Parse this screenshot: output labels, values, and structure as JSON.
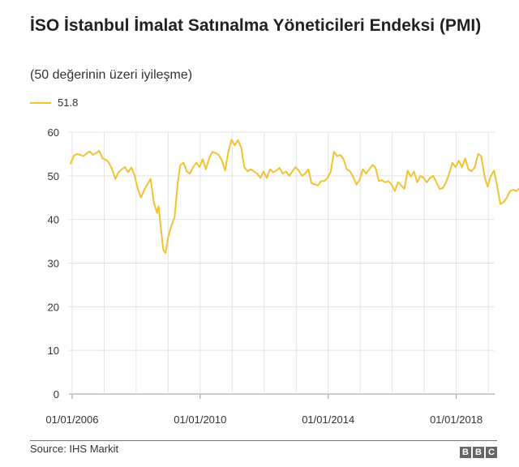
{
  "chart_data": {
    "type": "line",
    "title": "İSO İstanbul İmalat Satınalma Yöneticileri Endeksi (PMI)",
    "subtitle": "(50 değerinin üzeri iyileşme)",
    "legend_label": "51.8",
    "series_color": "#f2c230",
    "ylim": [
      0,
      60
    ],
    "yticks": [
      0,
      10,
      20,
      30,
      40,
      50,
      60
    ],
    "xticks": [
      {
        "x": 2006.0,
        "label": "01/01/2006"
      },
      {
        "x": 2010.0,
        "label": "01/01/2010"
      },
      {
        "x": 2014.0,
        "label": "01/01/2014"
      },
      {
        "x": 2018.0,
        "label": "01/01/2018"
      }
    ],
    "xlim": [
      2005.9,
      2019.2
    ],
    "grid": true,
    "series": [
      {
        "values": [
          [
            2005.95,
            52.8
          ],
          [
            2006.05,
            54.6
          ],
          [
            2006.15,
            55.0
          ],
          [
            2006.25,
            54.8
          ],
          [
            2006.35,
            54.5
          ],
          [
            2006.45,
            55.1
          ],
          [
            2006.55,
            55.6
          ],
          [
            2006.65,
            54.8
          ],
          [
            2006.75,
            55.2
          ],
          [
            2006.85,
            55.7
          ],
          [
            2006.95,
            54.0
          ],
          [
            2007.05,
            53.7
          ],
          [
            2007.15,
            53.0
          ],
          [
            2007.25,
            51.5
          ],
          [
            2007.35,
            49.3
          ],
          [
            2007.45,
            50.8
          ],
          [
            2007.55,
            51.5
          ],
          [
            2007.65,
            52.0
          ],
          [
            2007.75,
            50.8
          ],
          [
            2007.85,
            51.9
          ],
          [
            2007.95,
            50.2
          ],
          [
            2008.05,
            47.0
          ],
          [
            2008.15,
            45.0
          ],
          [
            2008.25,
            46.8
          ],
          [
            2008.35,
            48.0
          ],
          [
            2008.45,
            49.3
          ],
          [
            2008.55,
            44.0
          ],
          [
            2008.65,
            41.5
          ],
          [
            2008.7,
            43.0
          ],
          [
            2008.78,
            37.5
          ],
          [
            2008.85,
            33.0
          ],
          [
            2008.92,
            32.3
          ],
          [
            2009.0,
            36.0
          ],
          [
            2009.1,
            38.5
          ],
          [
            2009.2,
            40.5
          ],
          [
            2009.3,
            48.5
          ],
          [
            2009.38,
            52.5
          ],
          [
            2009.48,
            53.0
          ],
          [
            2009.58,
            51.0
          ],
          [
            2009.68,
            50.5
          ],
          [
            2009.78,
            52.0
          ],
          [
            2009.88,
            53.0
          ],
          [
            2009.98,
            52.0
          ],
          [
            2010.08,
            53.8
          ],
          [
            2010.18,
            51.5
          ],
          [
            2010.28,
            54.0
          ],
          [
            2010.38,
            55.5
          ],
          [
            2010.48,
            55.2
          ],
          [
            2010.58,
            54.8
          ],
          [
            2010.68,
            53.5
          ],
          [
            2010.78,
            51.2
          ],
          [
            2010.88,
            55.5
          ],
          [
            2010.98,
            58.3
          ],
          [
            2011.08,
            57.0
          ],
          [
            2011.18,
            58.2
          ],
          [
            2011.28,
            56.5
          ],
          [
            2011.38,
            52.0
          ],
          [
            2011.48,
            51.0
          ],
          [
            2011.58,
            51.5
          ],
          [
            2011.68,
            51.0
          ],
          [
            2011.78,
            50.5
          ],
          [
            2011.88,
            49.5
          ],
          [
            2011.98,
            51.0
          ],
          [
            2012.08,
            49.5
          ],
          [
            2012.18,
            51.5
          ],
          [
            2012.28,
            50.8
          ],
          [
            2012.38,
            51.2
          ],
          [
            2012.48,
            51.8
          ],
          [
            2012.58,
            50.5
          ],
          [
            2012.68,
            51.0
          ],
          [
            2012.78,
            50.0
          ],
          [
            2012.88,
            51.0
          ],
          [
            2012.98,
            52.0
          ],
          [
            2013.08,
            51.2
          ],
          [
            2013.18,
            50.0
          ],
          [
            2013.28,
            50.5
          ],
          [
            2013.38,
            51.5
          ],
          [
            2013.48,
            48.3
          ],
          [
            2013.58,
            48.0
          ],
          [
            2013.68,
            47.8
          ],
          [
            2013.78,
            48.8
          ],
          [
            2013.88,
            48.8
          ],
          [
            2013.98,
            49.5
          ],
          [
            2014.08,
            51.0
          ],
          [
            2014.18,
            55.5
          ],
          [
            2014.28,
            54.5
          ],
          [
            2014.38,
            54.8
          ],
          [
            2014.48,
            53.8
          ],
          [
            2014.58,
            51.5
          ],
          [
            2014.68,
            51.0
          ],
          [
            2014.78,
            49.8
          ],
          [
            2014.88,
            48.0
          ],
          [
            2014.98,
            49.0
          ],
          [
            2015.08,
            51.5
          ],
          [
            2015.18,
            50.5
          ],
          [
            2015.28,
            51.5
          ],
          [
            2015.38,
            52.5
          ],
          [
            2015.48,
            51.8
          ],
          [
            2015.58,
            48.8
          ],
          [
            2015.68,
            49.0
          ],
          [
            2015.78,
            48.5
          ],
          [
            2015.88,
            48.8
          ],
          [
            2015.98,
            48.0
          ],
          [
            2016.08,
            46.5
          ],
          [
            2016.18,
            48.5
          ],
          [
            2016.28,
            47.8
          ],
          [
            2016.38,
            47.0
          ],
          [
            2016.48,
            51.2
          ],
          [
            2016.58,
            49.8
          ],
          [
            2016.68,
            51.0
          ],
          [
            2016.78,
            48.5
          ],
          [
            2016.88,
            50.0
          ],
          [
            2016.98,
            49.5
          ],
          [
            2017.08,
            48.5
          ],
          [
            2017.18,
            49.5
          ],
          [
            2017.28,
            50.0
          ],
          [
            2017.38,
            48.5
          ],
          [
            2017.48,
            47.0
          ],
          [
            2017.58,
            47.2
          ],
          [
            2017.68,
            48.5
          ],
          [
            2017.78,
            50.5
          ],
          [
            2017.88,
            53.0
          ],
          [
            2017.98,
            52.0
          ],
          [
            2018.08,
            53.5
          ],
          [
            2018.18,
            52.0
          ],
          [
            2018.28,
            54.0
          ],
          [
            2018.38,
            51.5
          ],
          [
            2018.48,
            51.0
          ],
          [
            2018.58,
            52.0
          ],
          [
            2018.68,
            55.0
          ],
          [
            2018.78,
            54.5
          ],
          [
            2018.88,
            50.0
          ],
          [
            2018.98,
            47.5
          ],
          [
            2019.08,
            50.0
          ],
          [
            2019.18,
            51.2
          ],
          [
            2019.28,
            47.5
          ],
          [
            2019.38,
            43.5
          ],
          [
            2019.48,
            44.0
          ],
          [
            2019.58,
            45.0
          ],
          [
            2019.68,
            46.5
          ],
          [
            2019.78,
            46.8
          ],
          [
            2019.88,
            46.5
          ],
          [
            2019.98,
            47.2
          ]
        ]
      }
    ]
  },
  "footer": {
    "source": "Source: IHS Markit",
    "logo_letters": [
      "B",
      "B",
      "C"
    ]
  }
}
